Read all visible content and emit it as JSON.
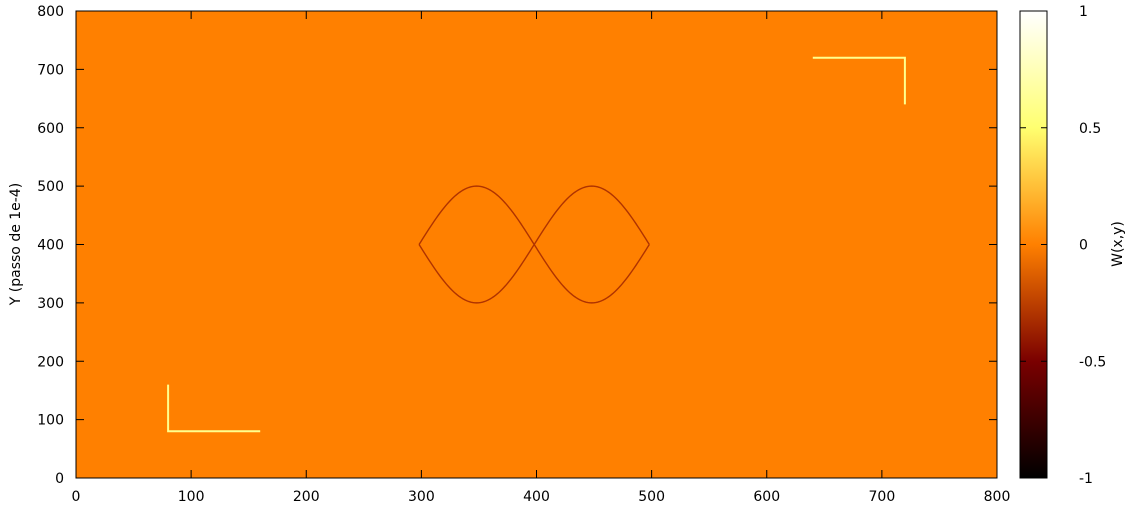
{
  "chart_data": {
    "type": "heatmap",
    "ylabel": "Y (passo de 1e-4)",
    "xlabel": "",
    "xlim": [
      0,
      800
    ],
    "ylim": [
      0,
      800
    ],
    "xticks": [
      0,
      100,
      200,
      300,
      400,
      500,
      600,
      700,
      800
    ],
    "yticks": [
      0,
      100,
      200,
      300,
      400,
      500,
      600,
      700,
      800
    ],
    "background_value": 0,
    "colorbar": {
      "label": "W(x,y)",
      "range": [
        -1,
        1
      ],
      "ticks": [
        -1,
        -0.5,
        0,
        0.5,
        1
      ],
      "tick_labels": [
        "-1",
        "-0.5",
        "0",
        "0.5",
        "1"
      ],
      "colormap": "gnuplot-hot (black → red → orange → yellow → white)"
    },
    "features": [
      {
        "name": "bright-L-bottom-left",
        "value": 0.6,
        "points": [
          [
            80,
            160
          ],
          [
            80,
            80
          ],
          [
            160,
            80
          ]
        ]
      },
      {
        "name": "bright-L-top-right",
        "value": 0.6,
        "points": [
          [
            640,
            720
          ],
          [
            720,
            720
          ],
          [
            720,
            640
          ]
        ]
      },
      {
        "name": "dark-lens-left",
        "value": -0.3,
        "shape": "lens",
        "x_range": [
          298,
          398
        ],
        "center_y": 400,
        "amplitude": 100
      },
      {
        "name": "dark-lens-right",
        "value": -0.3,
        "shape": "lens",
        "x_range": [
          398,
          498
        ],
        "center_y": 400,
        "amplitude": 100
      }
    ]
  }
}
